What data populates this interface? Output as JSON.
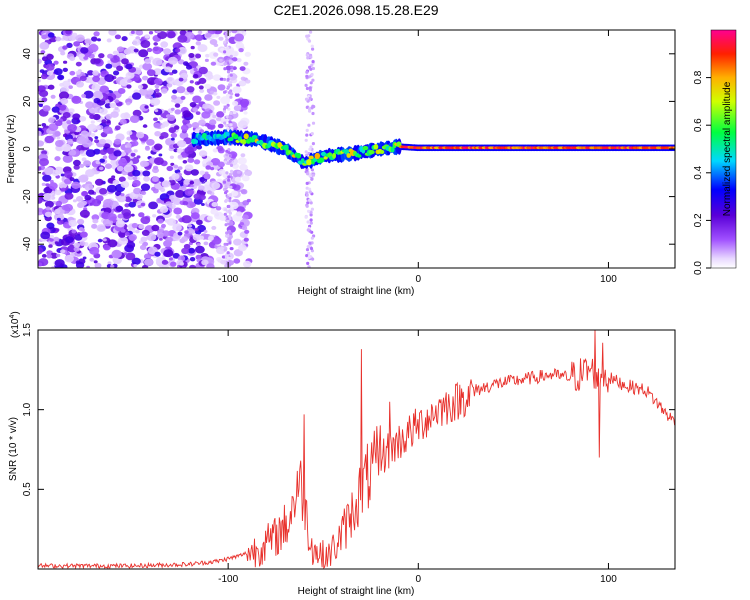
{
  "chart_data": [
    {
      "type": "heatmap",
      "title": "C2E1.2026.098.15.28.E29",
      "xlabel": "Height of straight line (km)",
      "ylabel": "Frequency (Hz)",
      "xlim": [
        -200,
        135
      ],
      "ylim": [
        -50,
        50
      ],
      "xticks": [
        -100,
        0,
        100
      ],
      "xtick_labels": [
        "-100",
        "0",
        "100"
      ],
      "yticks": [
        -40,
        -20,
        0,
        20,
        40
      ],
      "ytick_labels": [
        "-40",
        "-20",
        "0",
        "20",
        "40"
      ],
      "colorbar": {
        "label": "Normalized spectral amplitude",
        "range": [
          0,
          1
        ],
        "ticks": [
          0.0,
          0.2,
          0.4,
          0.6,
          0.8
        ],
        "tick_labels": [
          "0.0",
          "0.2",
          "0.4",
          "0.6",
          "0.8"
        ]
      },
      "features": {
        "noise_region_x": [
          -200,
          -95
        ],
        "signal_start_x": -118,
        "signal_path": [
          [
            -118,
            4
          ],
          [
            -100,
            5
          ],
          [
            -85,
            4
          ],
          [
            -70,
            0
          ],
          [
            -60,
            -6
          ],
          [
            -50,
            -3
          ],
          [
            -35,
            -2
          ],
          [
            -20,
            0
          ],
          [
            -10,
            1
          ],
          [
            0,
            0.5
          ],
          [
            135,
            0.5
          ]
        ],
        "vertical_streaks_x": [
          -100,
          -57
        ]
      }
    },
    {
      "type": "line",
      "xlabel": "Height of straight line (km)",
      "ylabel": "SNR (10 * v/v)",
      "scale_label_base": "(x10",
      "scale_label_exp": "4",
      "scale_label_end": ")",
      "xlim": [
        -200,
        135
      ],
      "ylim": [
        0,
        1.5
      ],
      "xticks": [
        -100,
        0,
        100
      ],
      "xtick_labels": [
        "-100",
        "0",
        "100"
      ],
      "yticks": [
        0.5,
        1.0,
        1.5
      ],
      "ytick_labels": [
        "0.5",
        "1.0",
        "1.5"
      ],
      "series": [
        {
          "name": "SNR",
          "color": "#e8312c",
          "x": [
            -200,
            -150,
            -120,
            -105,
            -95,
            -85,
            -75,
            -68,
            -63,
            -60,
            -58,
            -55,
            -50,
            -45,
            -40,
            -35,
            -30,
            -28,
            -25,
            -22,
            -20,
            -15,
            -10,
            -5,
            0,
            5,
            10,
            20,
            30,
            40,
            50,
            60,
            70,
            80,
            85,
            90,
            95,
            100,
            110,
            120,
            125,
            130,
            135
          ],
          "values": [
            0.02,
            0.02,
            0.03,
            0.05,
            0.08,
            0.12,
            0.2,
            0.3,
            0.55,
            0.45,
            0.25,
            0.12,
            0.08,
            0.12,
            0.22,
            0.35,
            0.5,
            0.55,
            0.6,
            0.65,
            0.7,
            0.75,
            0.8,
            0.85,
            0.9,
            0.95,
            1.0,
            1.05,
            1.12,
            1.16,
            1.18,
            1.2,
            1.22,
            1.2,
            1.22,
            1.25,
            1.22,
            1.2,
            1.15,
            1.12,
            1.05,
            0.98,
            0.92
          ],
          "spikes": [
            [
              -60,
              0.97
            ],
            [
              -30,
              1.38
            ],
            [
              -15,
              1.05
            ],
            [
              93,
              1.5
            ],
            [
              97,
              1.42
            ],
            [
              95,
              0.7
            ]
          ]
        }
      ]
    }
  ]
}
